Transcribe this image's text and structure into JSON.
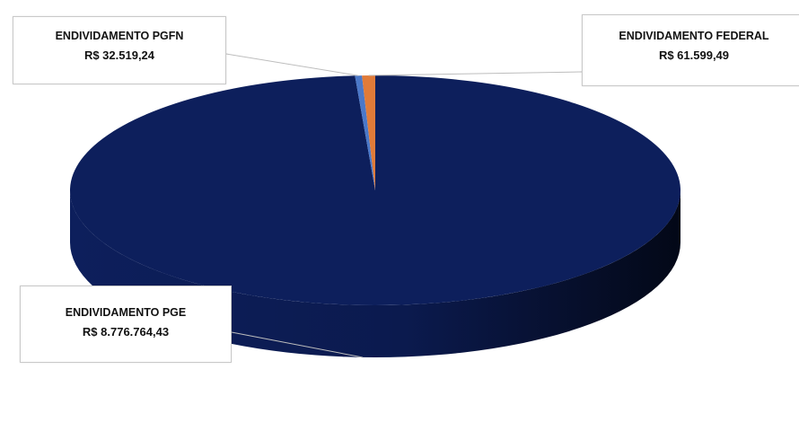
{
  "chart_data": {
    "type": "pie",
    "slices": [
      {
        "label": "ENDIVIDAMENTO PGE",
        "value": 8776764.43,
        "value_text": "R$ 8.776.764,43",
        "color": "#0d1f5c"
      },
      {
        "label": "ENDIVIDAMENTO PGFN",
        "value": 32519.24,
        "value_text": "R$ 32.519,24",
        "color": "#4a78c9"
      },
      {
        "label": "ENDIVIDAMENTO FEDERAL",
        "value": 61599.49,
        "value_text": "R$ 61.599,49",
        "color": "#e07b39"
      }
    ],
    "legend": "none",
    "style": "3d"
  }
}
